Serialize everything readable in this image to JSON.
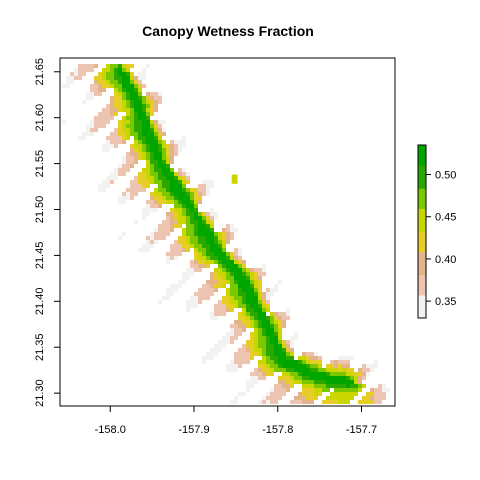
{
  "chart_data": {
    "type": "heatmap",
    "title": "Canopy Wetness Fraction",
    "xlabel": "",
    "ylabel": "",
    "xlim": [
      -158.06,
      -157.66
    ],
    "ylim": [
      21.286,
      21.665
    ],
    "x_ticks": [
      -158.0,
      -157.9,
      -157.8,
      -157.7
    ],
    "x_tick_labels": [
      "-158.0",
      "-157.9",
      "-157.8",
      "-157.7"
    ],
    "y_ticks": [
      21.3,
      21.35,
      21.4,
      21.45,
      21.5,
      21.55,
      21.6,
      21.65
    ],
    "y_tick_labels": [
      "21.30",
      "21.35",
      "21.40",
      "21.45",
      "21.50",
      "21.55",
      "21.60",
      "21.65"
    ],
    "grid": false,
    "legend": {
      "placement": "right",
      "range": [
        0.33,
        0.535
      ],
      "ticks": [
        0.35,
        0.4,
        0.45,
        0.5
      ],
      "tick_labels": [
        "0.35",
        "0.40",
        "0.45",
        "0.50"
      ],
      "colors": [
        "#f2f2f2",
        "#edc4b0",
        "#e3b48c",
        "#e6ce27",
        "#c9d600",
        "#7cc800",
        "#2aa800",
        "#00a600"
      ]
    },
    "ridge_path": [
      [
        -157.985,
        21.65
      ],
      [
        -157.96,
        21.6
      ],
      [
        -157.945,
        21.56
      ],
      [
        -157.92,
        21.525
      ],
      [
        -157.898,
        21.495
      ],
      [
        -157.875,
        21.46
      ],
      [
        -157.85,
        21.435
      ],
      [
        -157.832,
        21.41
      ],
      [
        -157.82,
        21.385
      ],
      [
        -157.808,
        21.365
      ],
      [
        -157.795,
        21.34
      ],
      [
        -157.765,
        21.325
      ],
      [
        -157.74,
        21.318
      ],
      [
        -157.715,
        21.315
      ]
    ],
    "fringe_points": [
      [
        -157.98,
        21.64
      ],
      [
        -158.04,
        21.58
      ],
      [
        -158.05,
        21.55
      ],
      [
        -158.02,
        21.5
      ],
      [
        -157.99,
        21.47
      ],
      [
        -157.95,
        21.44
      ],
      [
        -157.92,
        21.41
      ],
      [
        -157.88,
        21.38
      ],
      [
        -157.86,
        21.36
      ],
      [
        -157.84,
        21.34
      ],
      [
        -157.82,
        21.32
      ],
      [
        -157.8,
        21.31
      ],
      [
        -157.77,
        21.3
      ],
      [
        -157.73,
        21.31
      ],
      [
        -157.7,
        21.31
      ]
    ],
    "islet": [
      [
        -157.855,
        21.538
      ],
      [
        -157.848,
        21.528
      ]
    ]
  }
}
